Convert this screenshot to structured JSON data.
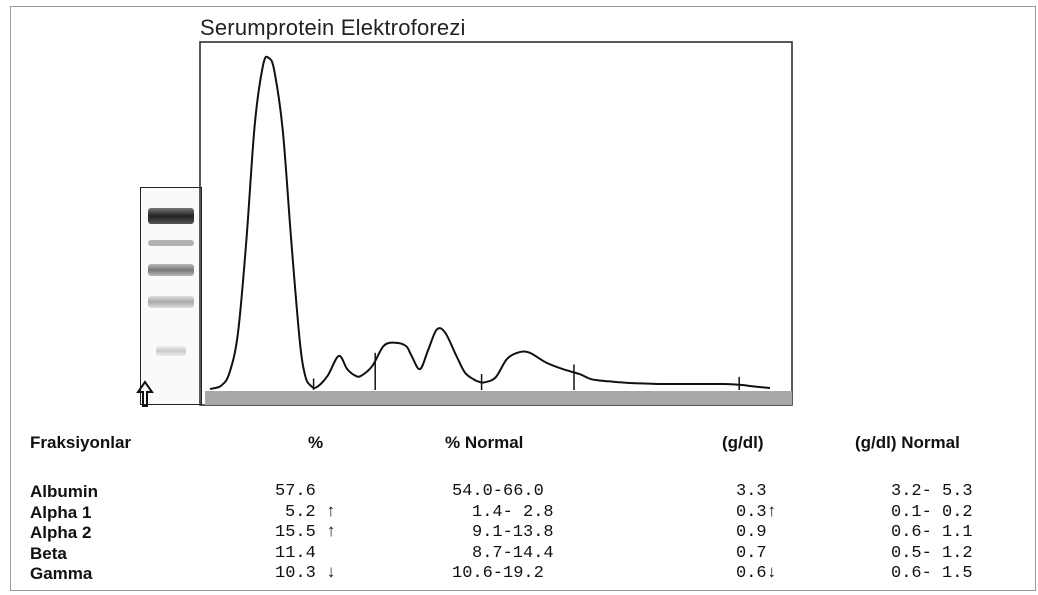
{
  "title": "Serumprotein Elektroforezi",
  "table": {
    "headers": {
      "fraction": "Fraksiyonlar",
      "percent": "%",
      "percent_normal": "% Normal",
      "gdl": "(g/dl)",
      "gdl_normal": "(g/dl) Normal"
    },
    "rows": [
      {
        "fraction": "Albumin",
        "percent": "57.6",
        "percent_normal": "54.0-66.0",
        "gdl": "3.3",
        "gdl_normal": "3.2- 5.3"
      },
      {
        "fraction": "Alpha 1",
        "percent": "5.2 ↑",
        "percent_normal": "1.4- 2.8",
        "gdl": "0.3↑",
        "gdl_normal": "0.1- 0.2"
      },
      {
        "fraction": "Alpha 2",
        "percent": "15.5 ↑",
        "percent_normal": "9.1-13.8",
        "gdl": "0.9",
        "gdl_normal": "0.6- 1.1"
      },
      {
        "fraction": "Beta",
        "percent": "11.4",
        "percent_normal": "8.7-14.4",
        "gdl": "0.7",
        "gdl_normal": "0.5- 1.2"
      },
      {
        "fraction": "Gamma",
        "percent": "10.3 ↓",
        "percent_normal": "10.6-19.2",
        "gdl": "0.6↓",
        "gdl_normal": "0.6- 1.5"
      }
    ]
  },
  "chart_data": {
    "type": "line",
    "title": "Serumprotein Elektroforezi",
    "xlabel": "",
    "ylabel": "",
    "grid": false,
    "x_range": [
      0,
      100
    ],
    "y_range": [
      0,
      100
    ],
    "series": [
      {
        "x": [
          0,
          2,
          3.5,
          5,
          6.5,
          8,
          9.5,
          10.5,
          11.5,
          13,
          14.5,
          16,
          17,
          18,
          19,
          21,
          23,
          24.5,
          26,
          27,
          29,
          31,
          33,
          35,
          36,
          37.5,
          39,
          40.5,
          42,
          44,
          45.5,
          47,
          48,
          49,
          51,
          53,
          55,
          57,
          60,
          63,
          66,
          68,
          70,
          72,
          73.5,
          75,
          77,
          80,
          83,
          86,
          89,
          92,
          95,
          97,
          100
        ],
        "y": [
          0,
          1,
          5,
          17,
          45,
          80,
          98,
          100,
          96,
          78,
          45,
          15,
          4,
          1,
          0.5,
          4,
          10,
          6,
          4,
          4,
          7,
          13,
          14,
          13,
          10,
          6,
          12,
          18,
          17,
          10,
          5,
          3,
          2.2,
          2,
          3.5,
          9,
          11,
          11,
          8,
          6,
          4.5,
          3,
          2.5,
          2.2,
          2,
          1.8,
          1.7,
          1.5,
          1.5,
          1.5,
          1.5,
          1.5,
          1.2,
          0.8,
          0.3
        ]
      }
    ],
    "x_span_note_free": true,
    "fraction_boundaries_x": [
      18.5,
      29.5,
      48.5,
      65,
      94.5
    ],
    "fractions": [
      "Albumin",
      "Alpha 1",
      "Alpha 2",
      "Beta",
      "Gamma"
    ]
  },
  "colors": {
    "line": "#111111",
    "baseline_bar": "#a8a8a8",
    "frame": "#9a9a9a"
  },
  "icons": {
    "strip_arrow": "up-arrow-icon"
  }
}
